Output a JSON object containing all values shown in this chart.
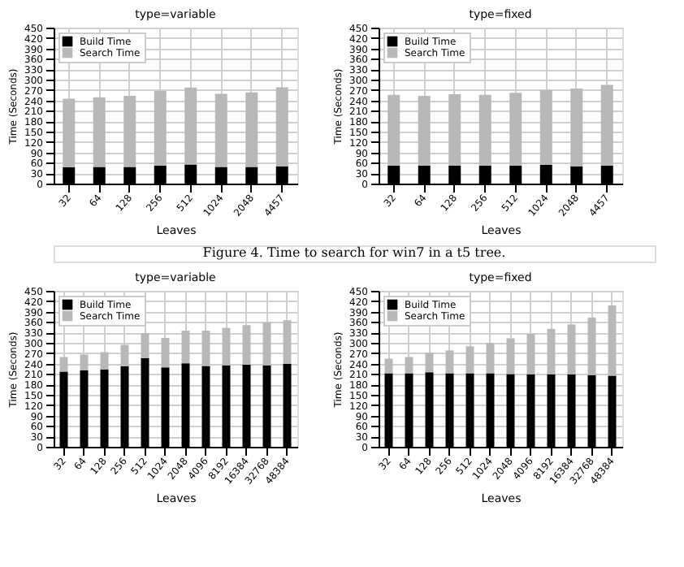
{
  "chart_data": [
    {
      "type": "bar",
      "title": "type=variable",
      "xlabel": "Leaves",
      "ylabel": "Time (Seconds)",
      "stacked": true,
      "grid": true,
      "legend": "top left",
      "categories": [
        "32",
        "64",
        "128",
        "256",
        "512",
        "1024",
        "2048",
        "4457"
      ],
      "ylim": [
        0,
        450
      ],
      "yticks": [
        0,
        30,
        60,
        90,
        120,
        150,
        180,
        210,
        240,
        270,
        300,
        330,
        360,
        390,
        420,
        450
      ],
      "annotations": [
        "Figure 4. Time to search for win7 in a t5 tree."
      ],
      "series": [
        {
          "name": "Build Time",
          "color": "#000000",
          "values": [
            47,
            48,
            48,
            52,
            55,
            48,
            48,
            50
          ]
        },
        {
          "name": "Search Time",
          "color": "#b8b8b8",
          "values": [
            198,
            201,
            205,
            215,
            222,
            211,
            215,
            228
          ]
        }
      ]
    },
    {
      "type": "bar",
      "title": "type=fixed",
      "xlabel": "Leaves",
      "ylabel": "Time (Seconds)",
      "stacked": true,
      "grid": true,
      "legend": "top left",
      "categories": [
        "32",
        "64",
        "128",
        "256",
        "512",
        "1024",
        "2048",
        "4457"
      ],
      "ylim": [
        0,
        450
      ],
      "yticks": [
        0,
        30,
        60,
        90,
        120,
        150,
        180,
        210,
        240,
        270,
        300,
        330,
        360,
        390,
        420,
        450
      ],
      "series": [
        {
          "name": "Build Time",
          "color": "#000000",
          "values": [
            52,
            52,
            52,
            52,
            52,
            54,
            50,
            52
          ]
        },
        {
          "name": "Search Time",
          "color": "#b8b8b8",
          "values": [
            204,
            201,
            206,
            204,
            210,
            216,
            224,
            233
          ]
        }
      ]
    },
    {
      "type": "bar",
      "title": "type=variable",
      "xlabel": "Leaves",
      "ylabel": "Time (Seconds)",
      "stacked": true,
      "grid": true,
      "legend": "top left",
      "categories": [
        "32",
        "64",
        "128",
        "256",
        "512",
        "1024",
        "2048",
        "4096",
        "8192",
        "16384",
        "32768",
        "48384"
      ],
      "ylim": [
        0,
        450
      ],
      "yticks": [
        0,
        30,
        60,
        90,
        120,
        150,
        180,
        210,
        240,
        270,
        300,
        330,
        360,
        390,
        420,
        450
      ],
      "series": [
        {
          "name": "Build Time",
          "color": "#000000",
          "values": [
            217,
            221,
            223,
            232,
            256,
            229,
            241,
            233,
            235,
            237,
            235,
            239
          ]
        },
        {
          "name": "Search Time",
          "color": "#b8b8b8",
          "values": [
            42,
            45,
            50,
            62,
            72,
            85,
            94,
            102,
            108,
            114,
            124,
            126
          ]
        }
      ]
    },
    {
      "type": "bar",
      "title": "type=fixed",
      "xlabel": "Leaves",
      "ylabel": "Time (Seconds)",
      "stacked": true,
      "grid": true,
      "legend": "top left",
      "categories": [
        "32",
        "64",
        "128",
        "256",
        "512",
        "1024",
        "2048",
        "4096",
        "8192",
        "16384",
        "32768",
        "48384"
      ],
      "ylim": [
        0,
        450
      ],
      "yticks": [
        0,
        30,
        60,
        90,
        120,
        150,
        180,
        210,
        240,
        270,
        300,
        330,
        360,
        390,
        420,
        450
      ],
      "series": [
        {
          "name": "Build Time",
          "color": "#000000",
          "values": [
            212,
            212,
            215,
            212,
            212,
            212,
            210,
            209,
            209,
            209,
            207,
            205
          ]
        },
        {
          "name": "Search Time",
          "color": "#b8b8b8",
          "values": [
            42,
            47,
            56,
            66,
            78,
            88,
            103,
            117,
            131,
            144,
            166,
            203
          ]
        }
      ]
    }
  ]
}
